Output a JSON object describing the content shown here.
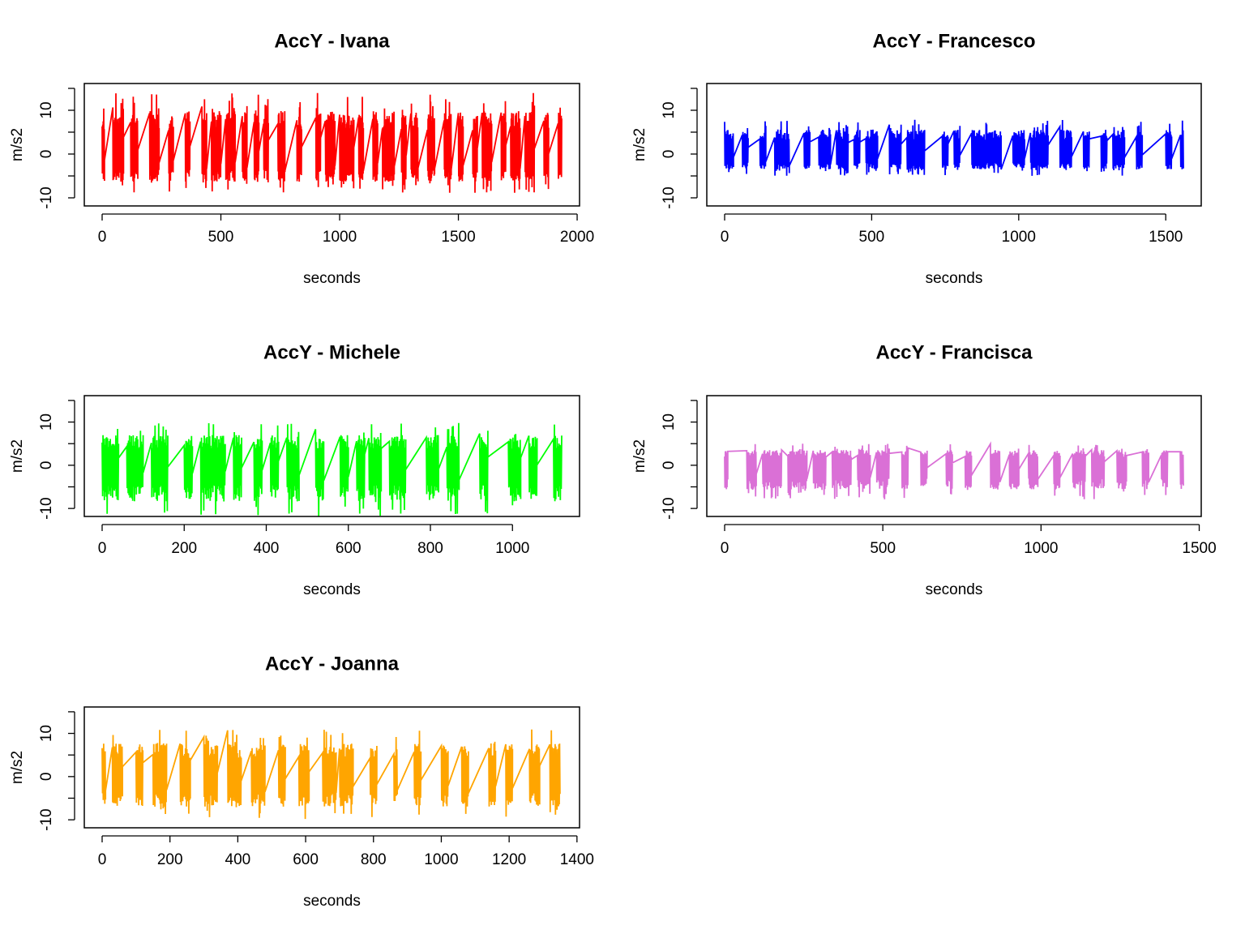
{
  "chart_data": [
    {
      "type": "line",
      "title": "AccY - Ivana",
      "xlabel": "seconds",
      "ylabel": "m/s2",
      "color": "#ff0000",
      "xlim": [
        0,
        2000
      ],
      "ylim": [
        -12,
        16
      ],
      "xticks": [
        0,
        500,
        1000,
        1500,
        2000
      ],
      "yticks": [
        -10,
        0,
        10
      ],
      "x_end": 1935,
      "amplitude_range": [
        -9,
        14
      ],
      "bursts": [
        [
          0,
          10
        ],
        [
          45,
          90
        ],
        [
          120,
          150
        ],
        [
          200,
          240
        ],
        [
          280,
          300
        ],
        [
          350,
          370
        ],
        [
          420,
          440
        ],
        [
          460,
          500
        ],
        [
          520,
          560
        ],
        [
          590,
          610
        ],
        [
          640,
          660
        ],
        [
          680,
          700
        ],
        [
          740,
          770
        ],
        [
          820,
          840
        ],
        [
          900,
          920
        ],
        [
          940,
          980
        ],
        [
          1000,
          1060
        ],
        [
          1080,
          1100
        ],
        [
          1140,
          1160
        ],
        [
          1180,
          1230
        ],
        [
          1260,
          1280
        ],
        [
          1300,
          1330
        ],
        [
          1370,
          1400
        ],
        [
          1440,
          1470
        ],
        [
          1500,
          1520
        ],
        [
          1560,
          1580
        ],
        [
          1600,
          1640
        ],
        [
          1680,
          1700
        ],
        [
          1720,
          1760
        ],
        [
          1780,
          1820
        ],
        [
          1860,
          1880
        ],
        [
          1920,
          1935
        ]
      ]
    },
    {
      "type": "line",
      "title": "AccY - Francesco",
      "xlabel": "seconds",
      "ylabel": "m/s2",
      "color": "#0000ff",
      "xlim": [
        0,
        1600
      ],
      "ylim": [
        -12,
        16
      ],
      "xticks": [
        0,
        500,
        1000,
        1500
      ],
      "yticks": [
        -10,
        0,
        10
      ],
      "x_end": 1560,
      "amplitude_range": [
        -5,
        8
      ],
      "bursts": [
        [
          0,
          30
        ],
        [
          60,
          80
        ],
        [
          120,
          140
        ],
        [
          170,
          220
        ],
        [
          270,
          290
        ],
        [
          320,
          360
        ],
        [
          380,
          420
        ],
        [
          440,
          460
        ],
        [
          480,
          520
        ],
        [
          560,
          600
        ],
        [
          620,
          680
        ],
        [
          740,
          760
        ],
        [
          780,
          800
        ],
        [
          840,
          940
        ],
        [
          980,
          1020
        ],
        [
          1040,
          1100
        ],
        [
          1140,
          1180
        ],
        [
          1220,
          1240
        ],
        [
          1280,
          1300
        ],
        [
          1320,
          1360
        ],
        [
          1400,
          1420
        ],
        [
          1500,
          1520
        ],
        [
          1550,
          1560
        ]
      ]
    },
    {
      "type": "line",
      "title": "AccY - Michele",
      "xlabel": "seconds",
      "ylabel": "m/s2",
      "color": "#00ff00",
      "xlim": [
        0,
        1150
      ],
      "ylim": [
        -12,
        16
      ],
      "xticks": [
        0,
        200,
        400,
        600,
        800,
        1000
      ],
      "yticks": [
        -10,
        0,
        10
      ],
      "x_end": 1120,
      "amplitude_range": [
        -12,
        10
      ],
      "bursts": [
        [
          0,
          40
        ],
        [
          60,
          100
        ],
        [
          120,
          160
        ],
        [
          200,
          220
        ],
        [
          240,
          300
        ],
        [
          320,
          340
        ],
        [
          370,
          390
        ],
        [
          410,
          430
        ],
        [
          450,
          480
        ],
        [
          520,
          540
        ],
        [
          580,
          600
        ],
        [
          620,
          640
        ],
        [
          650,
          680
        ],
        [
          700,
          740
        ],
        [
          790,
          820
        ],
        [
          840,
          870
        ],
        [
          920,
          940
        ],
        [
          990,
          1020
        ],
        [
          1040,
          1060
        ],
        [
          1100,
          1120
        ]
      ]
    },
    {
      "type": "line",
      "title": "AccY - Francisca",
      "xlabel": "seconds",
      "ylabel": "m/s2",
      "color": "#da70d6",
      "xlim": [
        0,
        1500
      ],
      "ylim": [
        -12,
        16
      ],
      "xticks": [
        0,
        500,
        1000,
        1500
      ],
      "yticks": [
        -10,
        0,
        10
      ],
      "x_end": 1450,
      "amplitude_range": [
        -8,
        5
      ],
      "bursts": [
        [
          0,
          10
        ],
        [
          70,
          100
        ],
        [
          120,
          180
        ],
        [
          200,
          260
        ],
        [
          280,
          320
        ],
        [
          340,
          400
        ],
        [
          420,
          460
        ],
        [
          480,
          520
        ],
        [
          560,
          580
        ],
        [
          620,
          640
        ],
        [
          700,
          720
        ],
        [
          760,
          780
        ],
        [
          840,
          870
        ],
        [
          900,
          930
        ],
        [
          960,
          990
        ],
        [
          1040,
          1060
        ],
        [
          1100,
          1140
        ],
        [
          1160,
          1200
        ],
        [
          1240,
          1270
        ],
        [
          1320,
          1340
        ],
        [
          1380,
          1400
        ],
        [
          1440,
          1450
        ]
      ]
    },
    {
      "type": "line",
      "title": "AccY - Joanna",
      "xlabel": "seconds",
      "ylabel": "m/s2",
      "color": "#ffa500",
      "xlim": [
        0,
        1400
      ],
      "ylim": [
        -12,
        16
      ],
      "xticks": [
        0,
        200,
        400,
        600,
        800,
        1000,
        1200,
        1400
      ],
      "yticks": [
        -10,
        0,
        10
      ],
      "x_end": 1355,
      "amplitude_range": [
        -10,
        11
      ],
      "bursts": [
        [
          0,
          10
        ],
        [
          30,
          60
        ],
        [
          100,
          120
        ],
        [
          150,
          190
        ],
        [
          230,
          260
        ],
        [
          300,
          340
        ],
        [
          370,
          410
        ],
        [
          440,
          480
        ],
        [
          520,
          540
        ],
        [
          580,
          610
        ],
        [
          650,
          690
        ],
        [
          700,
          740
        ],
        [
          790,
          810
        ],
        [
          860,
          870
        ],
        [
          920,
          940
        ],
        [
          1000,
          1020
        ],
        [
          1060,
          1080
        ],
        [
          1140,
          1160
        ],
        [
          1190,
          1210
        ],
        [
          1260,
          1290
        ],
        [
          1320,
          1350
        ]
      ]
    }
  ]
}
